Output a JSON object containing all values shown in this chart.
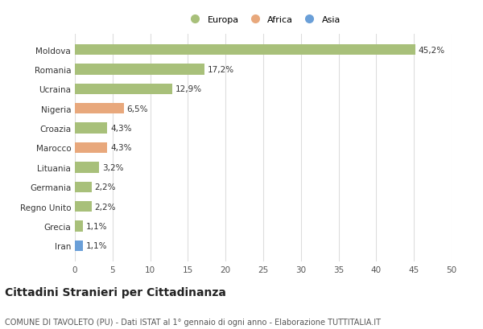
{
  "categories": [
    "Moldova",
    "Romania",
    "Ucraina",
    "Nigeria",
    "Croazia",
    "Marocco",
    "Lituania",
    "Germania",
    "Regno Unito",
    "Grecia",
    "Iran"
  ],
  "values": [
    45.2,
    17.2,
    12.9,
    6.5,
    4.3,
    4.3,
    3.2,
    2.2,
    2.2,
    1.1,
    1.1
  ],
  "labels": [
    "45,2%",
    "17,2%",
    "12,9%",
    "6,5%",
    "4,3%",
    "4,3%",
    "3,2%",
    "2,2%",
    "2,2%",
    "1,1%",
    "1,1%"
  ],
  "colors": [
    "#a8c07a",
    "#a8c07a",
    "#a8c07a",
    "#e8a87c",
    "#a8c07a",
    "#e8a87c",
    "#a8c07a",
    "#a8c07a",
    "#a8c07a",
    "#a8c07a",
    "#6a9fd8"
  ],
  "legend_labels": [
    "Europa",
    "Africa",
    "Asia"
  ],
  "legend_colors": [
    "#a8c07a",
    "#e8a87c",
    "#6a9fd8"
  ],
  "xlim": [
    0,
    50
  ],
  "xticks": [
    0,
    5,
    10,
    15,
    20,
    25,
    30,
    35,
    40,
    45,
    50
  ],
  "title": "Cittadini Stranieri per Cittadinanza",
  "subtitle": "COMUNE DI TAVOLETO (PU) - Dati ISTAT al 1° gennaio di ogni anno - Elaborazione TUTTITALIA.IT",
  "bg_color": "#ffffff",
  "grid_color": "#dddddd",
  "bar_height": 0.55,
  "title_fontsize": 10,
  "subtitle_fontsize": 7,
  "label_fontsize": 7.5,
  "tick_fontsize": 7.5,
  "legend_fontsize": 8
}
